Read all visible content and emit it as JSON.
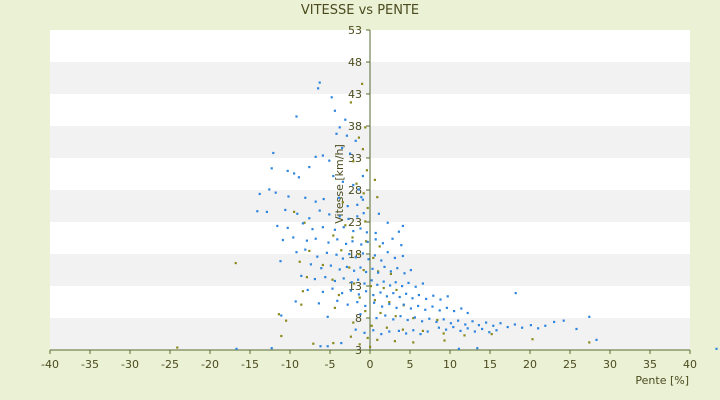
{
  "chart_data": {
    "type": "scatter",
    "title": "VITESSE vs PENTE",
    "xlabel": "Pente [%]",
    "ylabel": "Vitesse [km/h]",
    "xlim": [
      -40,
      40
    ],
    "ylim": [
      3,
      53
    ],
    "xticks": [
      "-40",
      "-35",
      "-30",
      "-25",
      "-20",
      "-15",
      "-10",
      "-5",
      "0",
      "5",
      "10",
      "15",
      "20",
      "25",
      "30",
      "35",
      "40"
    ],
    "yticks": [
      "3",
      "8",
      "13",
      "18",
      "23",
      "28",
      "33",
      "38",
      "43",
      "48",
      "53"
    ],
    "grid": "horizontal-bands",
    "legend": "none",
    "colors": {
      "background": "#ebf1d5",
      "plot_band_light": "#ffffff",
      "plot_band_dark": "#f2f2f2",
      "axis": "#556b2f",
      "series_blue": "#2e86de",
      "series_olive": "#8a8a1e",
      "title_text": "#4b4b1f"
    },
    "series": [
      {
        "color": "#2e86de",
        "points": [
          [
            -6.3,
            44.8
          ],
          [
            -6.5,
            43.9
          ],
          [
            -4.8,
            42.5
          ],
          [
            -9.2,
            39.5
          ],
          [
            -4.4,
            40.4
          ],
          [
            -3.8,
            37.8
          ],
          [
            -4.2,
            36.8
          ],
          [
            -2.9,
            36.5
          ],
          [
            -3.1,
            39.0
          ],
          [
            -5.9,
            33.4
          ],
          [
            -6.8,
            33.2
          ],
          [
            -3.5,
            34.6
          ],
          [
            -1.8,
            35.7
          ],
          [
            -2.5,
            33.7
          ],
          [
            -12.1,
            33.8
          ],
          [
            -12.3,
            31.4
          ],
          [
            -10.3,
            31.0
          ],
          [
            -9.5,
            30.6
          ],
          [
            -8.9,
            30.0
          ],
          [
            -7.6,
            31.6
          ],
          [
            -5.1,
            32.6
          ],
          [
            -4.6,
            30.2
          ],
          [
            -3.4,
            29.3
          ],
          [
            -1.4,
            28.1
          ],
          [
            -2.1,
            28.8
          ],
          [
            -12.6,
            28.1
          ],
          [
            -11.8,
            27.6
          ],
          [
            -13.8,
            27.4
          ],
          [
            -10.2,
            27.0
          ],
          [
            -8.1,
            26.8
          ],
          [
            -6.8,
            26.2
          ],
          [
            -5.8,
            26.6
          ],
          [
            -3.9,
            26.8
          ],
          [
            -2.8,
            25.5
          ],
          [
            -1.6,
            25.7
          ],
          [
            -0.9,
            26.5
          ],
          [
            -14.1,
            24.7
          ],
          [
            -12.9,
            24.6
          ],
          [
            -10.6,
            24.9
          ],
          [
            -9.1,
            24.3
          ],
          [
            -7.6,
            23.6
          ],
          [
            -6.3,
            24.8
          ],
          [
            -5.1,
            24.2
          ],
          [
            -3.8,
            23.9
          ],
          [
            -2.7,
            23.5
          ],
          [
            -1.6,
            23.9
          ],
          [
            -0.8,
            24.4
          ],
          [
            -11.6,
            22.4
          ],
          [
            -10.3,
            22.1
          ],
          [
            -8.4,
            22.8
          ],
          [
            -7.2,
            21.9
          ],
          [
            -5.9,
            22.2
          ],
          [
            -4.4,
            21.8
          ],
          [
            -3.3,
            22.2
          ],
          [
            -2.1,
            21.6
          ],
          [
            -1.2,
            22.0
          ],
          [
            -0.4,
            21.4
          ],
          [
            1.1,
            24.3
          ],
          [
            2.2,
            22.9
          ],
          [
            3.6,
            21.5
          ],
          [
            4.1,
            22.4
          ],
          [
            -10.9,
            20.2
          ],
          [
            -9.6,
            20.6
          ],
          [
            -7.9,
            20.1
          ],
          [
            -6.8,
            20.4
          ],
          [
            -5.2,
            19.8
          ],
          [
            -4.1,
            20.3
          ],
          [
            -3.0,
            19.6
          ],
          [
            -2.2,
            20.0
          ],
          [
            -1.1,
            19.5
          ],
          [
            -0.3,
            19.9
          ],
          [
            0.7,
            20.3
          ],
          [
            1.6,
            19.7
          ],
          [
            2.8,
            20.4
          ],
          [
            3.9,
            19.4
          ],
          [
            -9.2,
            18.3
          ],
          [
            -8.1,
            18.7
          ],
          [
            -6.6,
            17.6
          ],
          [
            -5.4,
            18.2
          ],
          [
            -4.2,
            17.9
          ],
          [
            -3.4,
            17.3
          ],
          [
            -2.6,
            18.0
          ],
          [
            -1.8,
            17.5
          ],
          [
            -0.9,
            18.1
          ],
          [
            -0.2,
            17.2
          ],
          [
            0.6,
            17.8
          ],
          [
            1.4,
            17.0
          ],
          [
            2.2,
            18.3
          ],
          [
            3.1,
            17.4
          ],
          [
            4.1,
            17.7
          ],
          [
            -11.2,
            16.9
          ],
          [
            -7.4,
            16.4
          ],
          [
            -6.1,
            15.8
          ],
          [
            -4.9,
            16.2
          ],
          [
            -3.8,
            15.6
          ],
          [
            -2.9,
            16.0
          ],
          [
            -2.0,
            15.4
          ],
          [
            -1.2,
            15.9
          ],
          [
            -0.5,
            15.2
          ],
          [
            0.3,
            15.7
          ],
          [
            1.0,
            15.1
          ],
          [
            1.8,
            16.0
          ],
          [
            2.6,
            15.3
          ],
          [
            3.4,
            15.8
          ],
          [
            4.3,
            15.0
          ],
          [
            5.1,
            15.5
          ],
          [
            -8.6,
            14.6
          ],
          [
            -6.9,
            14.1
          ],
          [
            -5.6,
            14.4
          ],
          [
            -4.4,
            13.8
          ],
          [
            -3.3,
            14.2
          ],
          [
            -2.3,
            13.6
          ],
          [
            -1.5,
            14.0
          ],
          [
            -0.7,
            13.4
          ],
          [
            0.2,
            13.9
          ],
          [
            0.9,
            13.2
          ],
          [
            1.7,
            13.7
          ],
          [
            2.5,
            13.1
          ],
          [
            3.2,
            13.6
          ],
          [
            4.0,
            13.0
          ],
          [
            4.8,
            13.5
          ],
          [
            5.7,
            12.9
          ],
          [
            6.6,
            13.4
          ],
          [
            -7.8,
            12.4
          ],
          [
            -5.9,
            12.1
          ],
          [
            -4.7,
            12.6
          ],
          [
            -3.5,
            11.9
          ],
          [
            -2.4,
            12.3
          ],
          [
            -1.4,
            11.7
          ],
          [
            -0.5,
            12.2
          ],
          [
            0.4,
            11.6
          ],
          [
            1.3,
            12.0
          ],
          [
            2.1,
            11.4
          ],
          [
            2.9,
            11.9
          ],
          [
            3.7,
            11.3
          ],
          [
            4.5,
            11.8
          ],
          [
            5.3,
            11.1
          ],
          [
            6.1,
            11.6
          ],
          [
            7.0,
            11.0
          ],
          [
            7.9,
            11.5
          ],
          [
            8.8,
            10.9
          ],
          [
            9.7,
            11.4
          ],
          [
            -9.3,
            10.6
          ],
          [
            -6.4,
            10.3
          ],
          [
            -4.1,
            10.7
          ],
          [
            -2.8,
            10.1
          ],
          [
            -1.6,
            10.5
          ],
          [
            -0.6,
            9.9
          ],
          [
            0.5,
            10.4
          ],
          [
            1.5,
            9.8
          ],
          [
            2.4,
            10.2
          ],
          [
            3.3,
            9.6
          ],
          [
            4.2,
            10.1
          ],
          [
            5.1,
            9.5
          ],
          [
            6.0,
            9.9
          ],
          [
            6.9,
            9.3
          ],
          [
            7.8,
            9.8
          ],
          [
            8.7,
            9.2
          ],
          [
            9.6,
            9.6
          ],
          [
            10.5,
            9.1
          ],
          [
            11.4,
            9.5
          ],
          [
            12.2,
            8.8
          ],
          [
            -11.1,
            8.4
          ],
          [
            -5.3,
            8.2
          ],
          [
            -1.2,
            8.6
          ],
          [
            0.8,
            8.0
          ],
          [
            1.9,
            8.4
          ],
          [
            2.9,
            7.8
          ],
          [
            3.8,
            8.3
          ],
          [
            4.7,
            7.7
          ],
          [
            5.6,
            8.1
          ],
          [
            6.5,
            7.5
          ],
          [
            7.4,
            7.9
          ],
          [
            8.3,
            7.4
          ],
          [
            9.2,
            7.8
          ],
          [
            10.1,
            7.2
          ],
          [
            11.0,
            7.6
          ],
          [
            11.9,
            7.0
          ],
          [
            12.8,
            7.5
          ],
          [
            13.6,
            6.9
          ],
          [
            14.5,
            7.3
          ],
          [
            15.4,
            6.8
          ],
          [
            16.3,
            7.2
          ],
          [
            17.2,
            6.6
          ],
          [
            18.1,
            7.0
          ],
          [
            19.0,
            6.5
          ],
          [
            20.1,
            6.9
          ],
          [
            21.0,
            6.4
          ],
          [
            21.9,
            6.8
          ],
          [
            23.0,
            7.4
          ],
          [
            24.2,
            7.6
          ],
          [
            25.8,
            6.3
          ],
          [
            27.4,
            8.2
          ],
          [
            8.6,
            6.5
          ],
          [
            9.5,
            6.2
          ],
          [
            10.4,
            6.6
          ],
          [
            11.3,
            6.0
          ],
          [
            12.2,
            6.4
          ],
          [
            13.1,
            5.9
          ],
          [
            14.0,
            6.3
          ],
          [
            14.9,
            5.8
          ],
          [
            15.8,
            6.1
          ],
          [
            3.6,
            6.0
          ],
          [
            4.5,
            5.6
          ],
          [
            5.4,
            6.1
          ],
          [
            6.3,
            5.5
          ],
          [
            7.2,
            5.9
          ],
          [
            -1.8,
            6.2
          ],
          [
            -0.7,
            5.7
          ],
          [
            0.4,
            6.1
          ],
          [
            1.4,
            5.5
          ],
          [
            2.4,
            5.9
          ],
          [
            -12.3,
            3.3
          ],
          [
            -16.7,
            3.2
          ],
          [
            -5.3,
            3.6
          ],
          [
            -3.6,
            4.1
          ],
          [
            -6.2,
            3.6
          ],
          [
            11.1,
            3.2
          ],
          [
            13.4,
            3.3
          ],
          [
            28.3,
            4.6
          ],
          [
            43.3,
            3.2
          ],
          [
            18.2,
            11.9
          ],
          [
            -1.1,
            26.9
          ],
          [
            -0.9,
            30.2
          ],
          [
            0.7,
            21.3
          ]
        ]
      },
      {
        "color": "#8a8a1e",
        "points": [
          [
            -1.0,
            44.6
          ],
          [
            -2.4,
            41.7
          ],
          [
            -0.6,
            37.8
          ],
          [
            -1.4,
            36.2
          ],
          [
            -0.9,
            34.4
          ],
          [
            -2.1,
            32.5
          ],
          [
            -0.4,
            31.1
          ],
          [
            0.6,
            29.6
          ],
          [
            -1.7,
            29.0
          ],
          [
            -0.8,
            27.5
          ],
          [
            0.9,
            26.9
          ],
          [
            -3.4,
            26.1
          ],
          [
            -0.3,
            25.2
          ],
          [
            -9.5,
            24.6
          ],
          [
            -8.2,
            22.9
          ],
          [
            -3.1,
            22.5
          ],
          [
            -0.6,
            23.1
          ],
          [
            -4.6,
            20.9
          ],
          [
            -2.2,
            20.6
          ],
          [
            -0.5,
            20.0
          ],
          [
            1.2,
            19.2
          ],
          [
            -7.6,
            18.5
          ],
          [
            -3.6,
            18.6
          ],
          [
            -1.4,
            18.0
          ],
          [
            0.4,
            17.4
          ],
          [
            -8.8,
            16.8
          ],
          [
            -5.9,
            16.3
          ],
          [
            -2.6,
            15.9
          ],
          [
            -0.8,
            15.5
          ],
          [
            1.0,
            15.3
          ],
          [
            2.6,
            14.9
          ],
          [
            -16.8,
            16.6
          ],
          [
            -7.9,
            14.4
          ],
          [
            -4.7,
            14.0
          ],
          [
            -2.0,
            13.4
          ],
          [
            0.1,
            13.0
          ],
          [
            1.7,
            12.7
          ],
          [
            3.3,
            12.4
          ],
          [
            -8.4,
            12.2
          ],
          [
            -3.9,
            11.6
          ],
          [
            -1.3,
            11.2
          ],
          [
            0.6,
            10.8
          ],
          [
            2.4,
            10.5
          ],
          [
            4.2,
            10.0
          ],
          [
            -8.6,
            10.1
          ],
          [
            -4.4,
            9.6
          ],
          [
            -0.6,
            9.1
          ],
          [
            1.3,
            8.8
          ],
          [
            3.2,
            8.3
          ],
          [
            5.4,
            8.0
          ],
          [
            8.4,
            7.7
          ],
          [
            -11.4,
            8.6
          ],
          [
            -10.5,
            7.6
          ],
          [
            -2.1,
            7.3
          ],
          [
            0.2,
            6.8
          ],
          [
            2.1,
            6.5
          ],
          [
            4.1,
            6.2
          ],
          [
            6.6,
            6.0
          ],
          [
            9.2,
            5.6
          ],
          [
            11.8,
            5.3
          ],
          [
            15.2,
            5.5
          ],
          [
            -11.1,
            5.2
          ],
          [
            -2.4,
            5.1
          ],
          [
            -0.3,
            4.9
          ],
          [
            0.9,
            4.6
          ],
          [
            3.1,
            4.4
          ],
          [
            5.4,
            4.2
          ],
          [
            9.3,
            4.5
          ],
          [
            20.3,
            4.7
          ],
          [
            27.4,
            4.2
          ],
          [
            -24.1,
            3.4
          ],
          [
            -7.1,
            4.0
          ],
          [
            -4.6,
            4.1
          ],
          [
            -1.3,
            3.9
          ],
          [
            0.0,
            3.5
          ]
        ]
      }
    ]
  }
}
